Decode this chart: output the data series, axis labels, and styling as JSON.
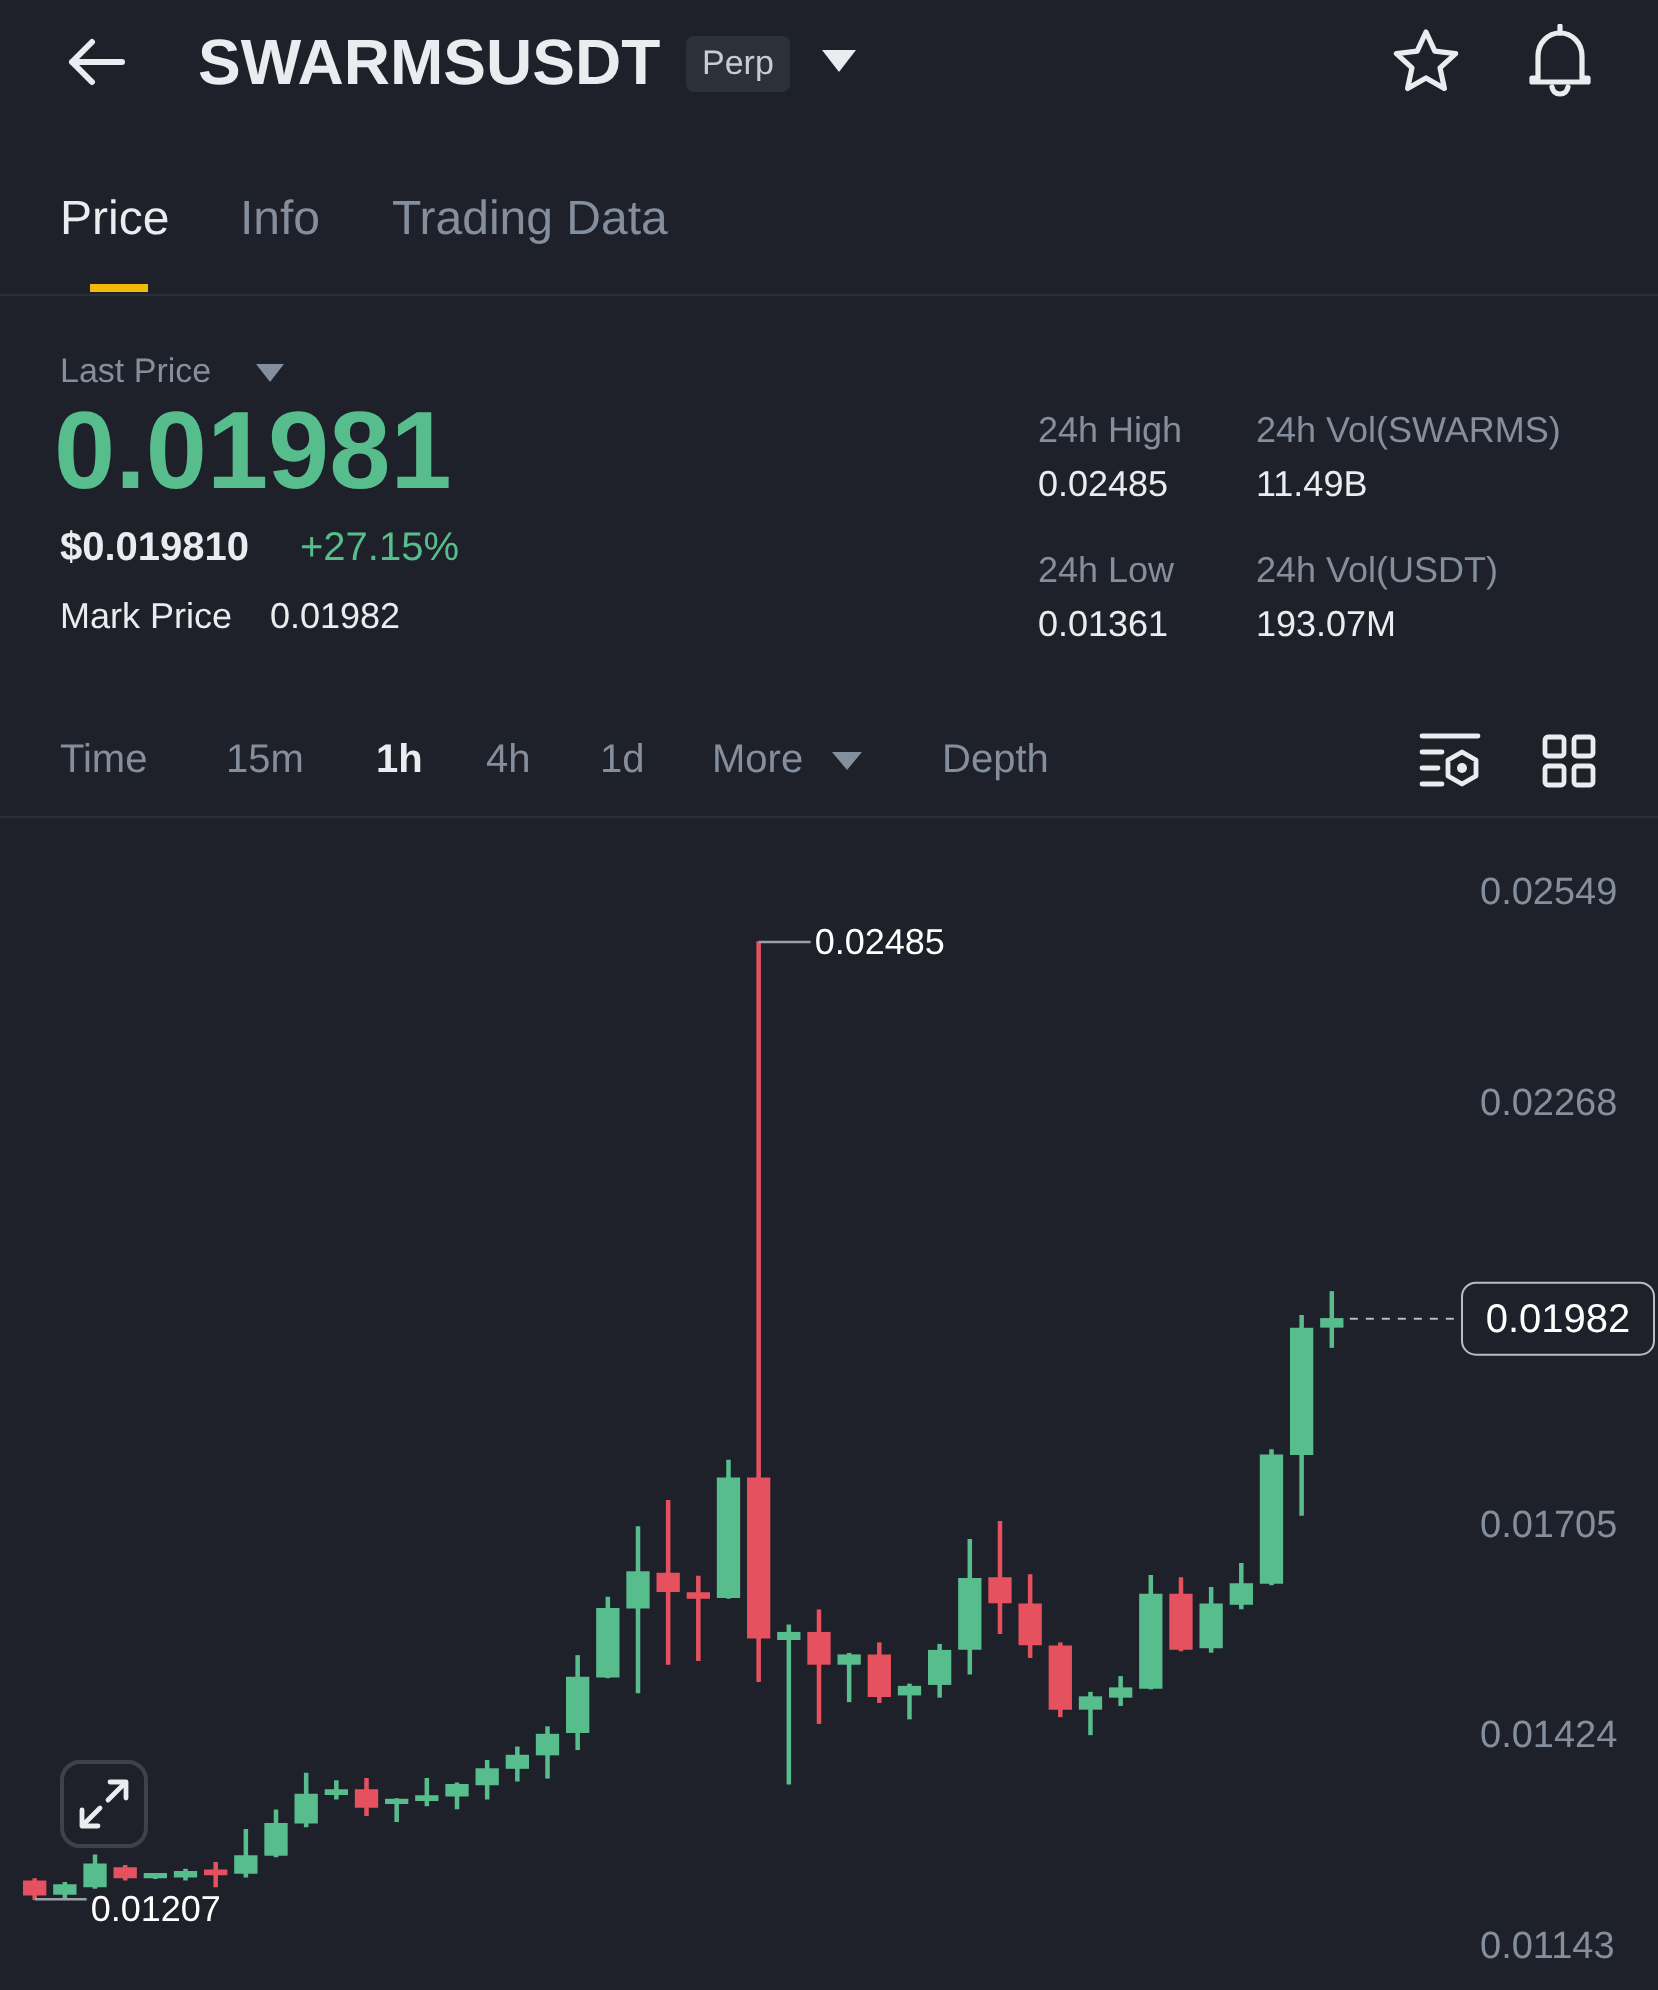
{
  "chart_data": {
    "type": "candlestick",
    "title": "SWARMSUSDT",
    "annotations": [
      "0.02485",
      "0.01207",
      "Perp",
      "Price",
      "Info",
      "Trading Data",
      "Last Price",
      "0.01981",
      "$0.019810",
      "+27.15%",
      "Mark Price",
      "0.01982",
      "24h High",
      "0.02485",
      "24h Low",
      "0.01361",
      "24h Vol(SWARMS)",
      "11.49B",
      "24h Vol(USDT)",
      "193.07M",
      "Time",
      "15m",
      "1h",
      "4h",
      "1d",
      "More",
      "Depth"
    ],
    "categories": [
      null,
      null,
      null,
      null,
      null,
      null,
      null,
      null,
      null,
      null,
      null,
      null,
      null,
      null,
      null,
      null,
      null,
      null,
      null,
      null,
      null,
      null,
      null,
      null,
      null,
      null,
      null,
      null,
      null,
      null,
      null,
      null,
      null,
      null,
      null,
      null,
      null,
      null,
      null,
      null,
      null,
      null,
      null,
      null
    ],
    "ohlc": [
      [
        0.01231,
        0.01234,
        0.01207,
        0.01213
      ],
      [
        0.01214,
        0.01229,
        0.01209,
        0.01226
      ],
      [
        0.01224,
        0.01266,
        0.01222,
        0.01254
      ],
      [
        0.01249,
        0.01252,
        0.01233,
        0.01236
      ],
      [
        0.01236,
        0.0124,
        0.01235,
        0.01238
      ],
      [
        0.01237,
        0.01247,
        0.01233,
        0.01244
      ],
      [
        0.01246,
        0.01256,
        0.01224,
        0.0124
      ],
      [
        0.01242,
        0.013,
        0.01237,
        0.01265
      ],
      [
        0.01266,
        0.01326,
        0.01264,
        0.01308
      ],
      [
        0.01309,
        0.01375,
        0.01304,
        0.01347
      ],
      [
        0.01347,
        0.01365,
        0.01341,
        0.01353
      ],
      [
        0.01353,
        0.01368,
        0.01319,
        0.0133
      ],
      [
        0.01335,
        0.01341,
        0.01311,
        0.0134
      ],
      [
        0.01339,
        0.01368,
        0.01332,
        0.01345
      ],
      [
        0.01345,
        0.01362,
        0.01328,
        0.0136
      ],
      [
        0.0136,
        0.01392,
        0.01341,
        0.01381
      ],
      [
        0.01382,
        0.0141,
        0.01365,
        0.01399
      ],
      [
        0.014,
        0.01437,
        0.01369,
        0.01427
      ],
      [
        0.0143,
        0.01532,
        0.01407,
        0.01503
      ],
      [
        0.01504,
        0.0161,
        0.01503,
        0.01595
      ],
      [
        0.01596,
        0.01704,
        0.01483,
        0.01644
      ],
      [
        0.01642,
        0.01739,
        0.01521,
        0.01618
      ],
      [
        0.01616,
        0.01638,
        0.01526,
        0.01609
      ],
      [
        0.0161,
        0.01793,
        0.01609,
        0.01769
      ],
      [
        0.01769,
        0.02485,
        0.01498,
        0.01556
      ],
      [
        0.01554,
        0.01573,
        0.01361,
        0.01563
      ],
      [
        0.01563,
        0.01593,
        0.01442,
        0.01521
      ],
      [
        0.01521,
        0.01535,
        0.01471,
        0.01533
      ],
      [
        0.01533,
        0.01549,
        0.0147,
        0.01478
      ],
      [
        0.0148,
        0.01494,
        0.01448,
        0.01491
      ],
      [
        0.01494,
        0.01547,
        0.01477,
        0.01539
      ],
      [
        0.01541,
        0.01687,
        0.01508,
        0.01635
      ],
      [
        0.01636,
        0.01711,
        0.01562,
        0.01603
      ],
      [
        0.01601,
        0.0164,
        0.0153,
        0.01547
      ],
      [
        0.01545,
        0.01549,
        0.01451,
        0.01461
      ],
      [
        0.01461,
        0.01483,
        0.01427,
        0.01477
      ],
      [
        0.01477,
        0.01504,
        0.01466,
        0.01489
      ],
      [
        0.01489,
        0.01639,
        0.01488,
        0.01614
      ],
      [
        0.01614,
        0.01636,
        0.01539,
        0.01541
      ],
      [
        0.01543,
        0.01623,
        0.01537,
        0.01601
      ],
      [
        0.01601,
        0.01655,
        0.01595,
        0.01628
      ],
      [
        0.01629,
        0.01807,
        0.01627,
        0.018
      ],
      [
        0.01801,
        0.01986,
        0.0172,
        0.01969
      ],
      [
        0.01971,
        0.02018,
        0.01944,
        0.01982
      ]
    ],
    "colors": [
      "#e6515f",
      "#58bd8d",
      "#58bd8d",
      "#e6515f",
      "#58bd8d",
      "#58bd8d",
      "#e6515f",
      "#58bd8d",
      "#58bd8d",
      "#58bd8d",
      "#58bd8d",
      "#e6515f",
      "#58bd8d",
      "#58bd8d",
      "#58bd8d",
      "#58bd8d",
      "#58bd8d",
      "#58bd8d",
      "#58bd8d",
      "#58bd8d",
      "#58bd8d",
      "#e6515f",
      "#e6515f",
      "#58bd8d",
      "#e6515f",
      "#58bd8d",
      "#e6515f",
      "#58bd8d",
      "#e6515f",
      "#58bd8d",
      "#58bd8d",
      "#58bd8d",
      "#e6515f",
      "#e6515f",
      "#e6515f",
      "#58bd8d",
      "#58bd8d",
      "#58bd8d",
      "#e6515f",
      "#58bd8d",
      "#58bd8d",
      "#58bd8d",
      "#58bd8d",
      "#58bd8d"
    ],
    "ylim": [
      0.01143,
      0.02549
    ],
    "yticks": [
      0.02549,
      0.02268,
      0.01705,
      0.01424,
      0.01143
    ],
    "ref_lines": [
      {
        "axis": "y",
        "value": 0.01982,
        "label": "0.01982",
        "color": "#b7bdc6",
        "line_style": "dashed"
      }
    ]
  }
}
